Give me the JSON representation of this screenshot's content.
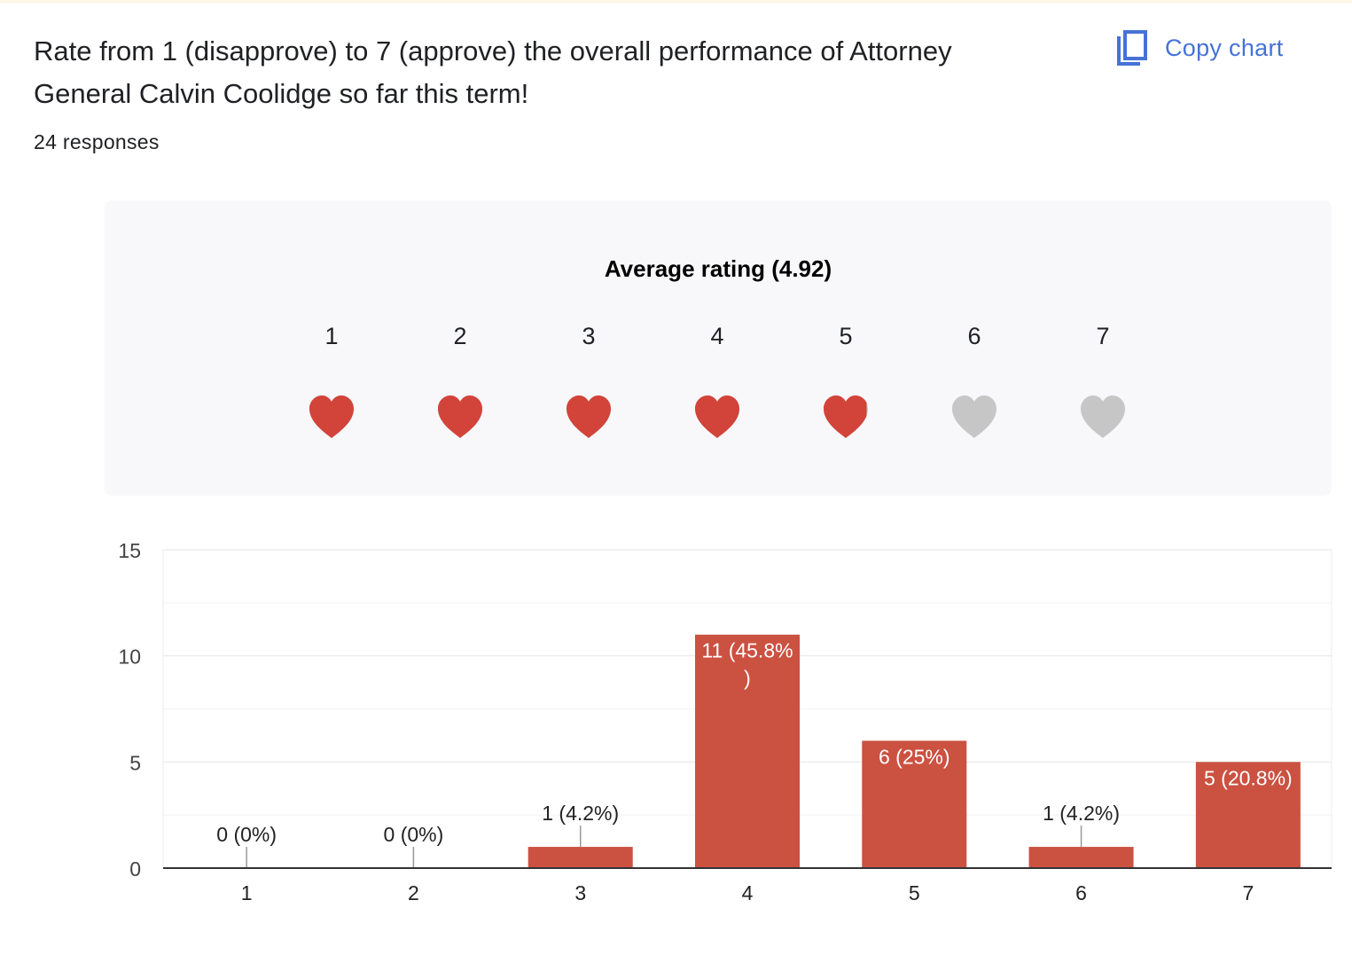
{
  "question": {
    "title": "Rate from 1 (disapprove) to 7 (approve) the overall performance of Attorney General Calvin Coolidge so far this term!",
    "responses": "24 responses"
  },
  "copy_button": {
    "label": "Copy chart",
    "icon": "copy-icon"
  },
  "rating": {
    "title": "Average rating (4.92)",
    "average": 4.92,
    "scale": [
      "1",
      "2",
      "3",
      "4",
      "5",
      "6",
      "7"
    ],
    "icon": "heart-icon",
    "filled_color": "#d2433a",
    "empty_color": "#c6c6c6"
  },
  "chart_data": {
    "type": "bar",
    "categories": [
      "1",
      "2",
      "3",
      "4",
      "5",
      "6",
      "7"
    ],
    "values": [
      0,
      0,
      1,
      11,
      6,
      1,
      5
    ],
    "data_labels": [
      "0 (0%)",
      "0 (0%)",
      "1 (4.2%)",
      "11 (45.8%)",
      "6 (25%)",
      "1 (4.2%)",
      "5 (20.8%)"
    ],
    "yticks": [
      "0",
      "5",
      "10",
      "15"
    ],
    "ylim": [
      0,
      15
    ],
    "grid": true,
    "bar_color": "#cb5141",
    "title": "",
    "xlabel": "",
    "ylabel": ""
  }
}
